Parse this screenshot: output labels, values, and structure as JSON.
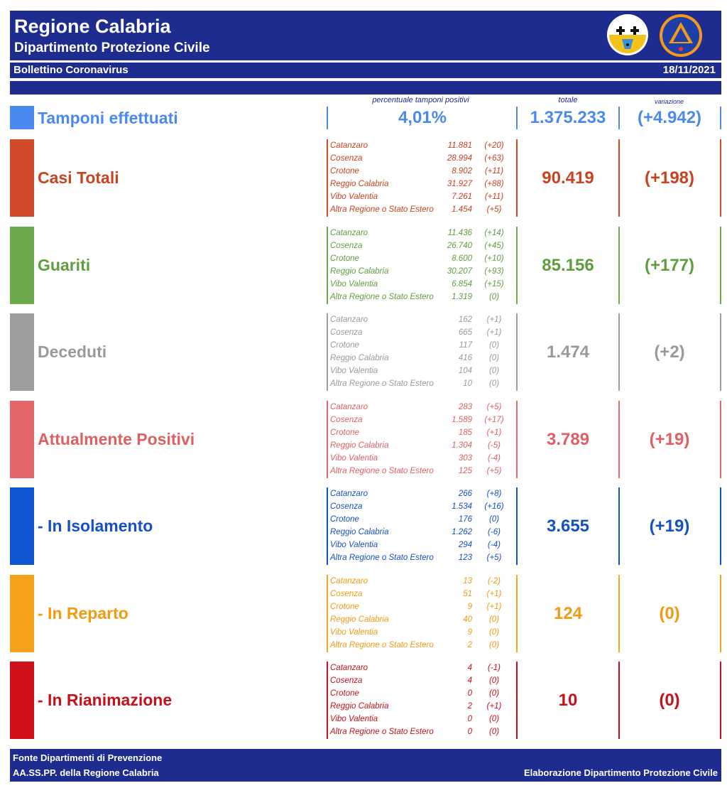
{
  "header": {
    "title": "Regione Calabria",
    "subtitle": "Dipartimento Protezione Civile",
    "bulletin": "Bollettino Coronavirus",
    "date": "18/11/2021",
    "logo_text": "PROTEZIONE CIVILE Regione Calabria",
    "brand_color": "#1f2c8f"
  },
  "columns": {
    "percent_label": "percentuale tamponi positivi",
    "total_label": "totale",
    "variation_label": "variazione"
  },
  "tamponi": {
    "label": "Tamponi effettuati",
    "percent": "4,01%",
    "total": "1.375.233",
    "variation": "(+4.942)",
    "color": "#4a8af0"
  },
  "sections": [
    {
      "key": "casi",
      "label": "Casi Totali",
      "color": "#d24a2a",
      "text_color": "#c8431f",
      "total": "90.419",
      "variation": "(+198)",
      "rows": [
        {
          "name": "Catanzaro",
          "value": "11.881",
          "delta": "(+20)"
        },
        {
          "name": "Cosenza",
          "value": "28.994",
          "delta": "(+63)"
        },
        {
          "name": "Crotone",
          "value": "8.902",
          "delta": "(+11)"
        },
        {
          "name": "Reggio Calabria",
          "value": "31.927",
          "delta": "(+88)"
        },
        {
          "name": "Vibo Valentia",
          "value": "7.261",
          "delta": "(+11)"
        },
        {
          "name": "Altra Regione o Stato Estero",
          "value": "1.454",
          "delta": "(+5)"
        }
      ]
    },
    {
      "key": "guariti",
      "label": "Guariti",
      "color": "#6aaa4a",
      "text_color": "#5f9e3e",
      "total": "85.156",
      "variation": "(+177)",
      "rows": [
        {
          "name": "Catanzaro",
          "value": "11.436",
          "delta": "(+14)"
        },
        {
          "name": "Cosenza",
          "value": "26.740",
          "delta": "(+45)"
        },
        {
          "name": "Crotone",
          "value": "8.600",
          "delta": "(+10)"
        },
        {
          "name": "Reggio Calabria",
          "value": "30.207",
          "delta": "(+93)"
        },
        {
          "name": "Vibo Valentia",
          "value": "6.854",
          "delta": "(+15)"
        },
        {
          "name": "Altra Regione o Stato Estero",
          "value": "1.319",
          "delta": "(0)"
        }
      ]
    },
    {
      "key": "deceduti",
      "label": "Deceduti",
      "color": "#9e9e9e",
      "text_color": "#9a9a9a",
      "total": "1.474",
      "variation": "(+2)",
      "rows": [
        {
          "name": "Catanzaro",
          "value": "162",
          "delta": "(+1)"
        },
        {
          "name": "Cosenza",
          "value": "665",
          "delta": "(+1)"
        },
        {
          "name": "Crotone",
          "value": "117",
          "delta": "(0)"
        },
        {
          "name": "Reggio Calabria",
          "value": "416",
          "delta": "(0)"
        },
        {
          "name": "Vibo Valentia",
          "value": "104",
          "delta": "(0)"
        },
        {
          "name": "Altra Regione o Stato Estero",
          "value": "10",
          "delta": "(0)"
        }
      ]
    },
    {
      "key": "positivi",
      "label": "Attualmente Positivi",
      "color": "#e2676a",
      "text_color": "#df5f62",
      "total": "3.789",
      "variation": "(+19)",
      "rows": [
        {
          "name": "Catanzaro",
          "value": "283",
          "delta": "(+5)"
        },
        {
          "name": "Cosenza",
          "value": "1.589",
          "delta": "(+17)"
        },
        {
          "name": "Crotone",
          "value": "185",
          "delta": "(+1)"
        },
        {
          "name": "Reggio Calabria",
          "value": "1.304",
          "delta": "(-5)"
        },
        {
          "name": "Vibo Valentia",
          "value": "303",
          "delta": "(-4)"
        },
        {
          "name": "Altra Regione o Stato Estero",
          "value": "125",
          "delta": "(+5)"
        }
      ]
    },
    {
      "key": "isolamento",
      "label": " - In Isolamento",
      "color": "#0f55d2",
      "text_color": "#1450c8",
      "total": "3.655",
      "variation": "(+19)",
      "rows": [
        {
          "name": "Catanzaro",
          "value": "266",
          "delta": "(+8)"
        },
        {
          "name": "Cosenza",
          "value": "1.534",
          "delta": "(+16)"
        },
        {
          "name": "Crotone",
          "value": "176",
          "delta": "(0)"
        },
        {
          "name": "Reggio Calabria",
          "value": "1.262",
          "delta": "(-6)"
        },
        {
          "name": "Vibo Valentia",
          "value": "294",
          "delta": "(-4)"
        },
        {
          "name": "Altra Regione o Stato Estero",
          "value": "123",
          "delta": "(+5)"
        }
      ]
    },
    {
      "key": "reparto",
      "label": " - In Reparto",
      "color": "#f7a21b",
      "text_color": "#f29a10",
      "total": "124",
      "variation": "(0)",
      "rows": [
        {
          "name": "Catanzaro",
          "value": "13",
          "delta": "(-2)"
        },
        {
          "name": "Cosenza",
          "value": "51",
          "delta": "(+1)"
        },
        {
          "name": "Crotone",
          "value": "9",
          "delta": "(+1)"
        },
        {
          "name": "Reggio Calabria",
          "value": "40",
          "delta": "(0)"
        },
        {
          "name": "Vibo Valentia",
          "value": "9",
          "delta": "(0)"
        },
        {
          "name": "Altra Regione o Stato Estero",
          "value": "2",
          "delta": "(0)"
        }
      ]
    },
    {
      "key": "rianimazione",
      "label": " - In Rianimazione",
      "color": "#d0101a",
      "text_color": "#c8101a",
      "total": "10",
      "variation": "(0)",
      "rows": [
        {
          "name": "Catanzaro",
          "value": "4",
          "delta": "(-1)"
        },
        {
          "name": "Cosenza",
          "value": "4",
          "delta": "(0)"
        },
        {
          "name": "Crotone",
          "value": "0",
          "delta": "(0)"
        },
        {
          "name": "Reggio Calabria",
          "value": "2",
          "delta": "(+1)"
        },
        {
          "name": "Vibo Valentia",
          "value": "0",
          "delta": "(0)"
        },
        {
          "name": "Altra Regione o Stato Estero",
          "value": "0",
          "delta": "(0)"
        }
      ]
    }
  ],
  "footer": {
    "line1": "Fonte Dipartimenti di Prevenzione",
    "line2": "AA.SS.PP.  della Regione Calabria",
    "credit": "Elaborazione Dipartimento Protezione Civile"
  }
}
